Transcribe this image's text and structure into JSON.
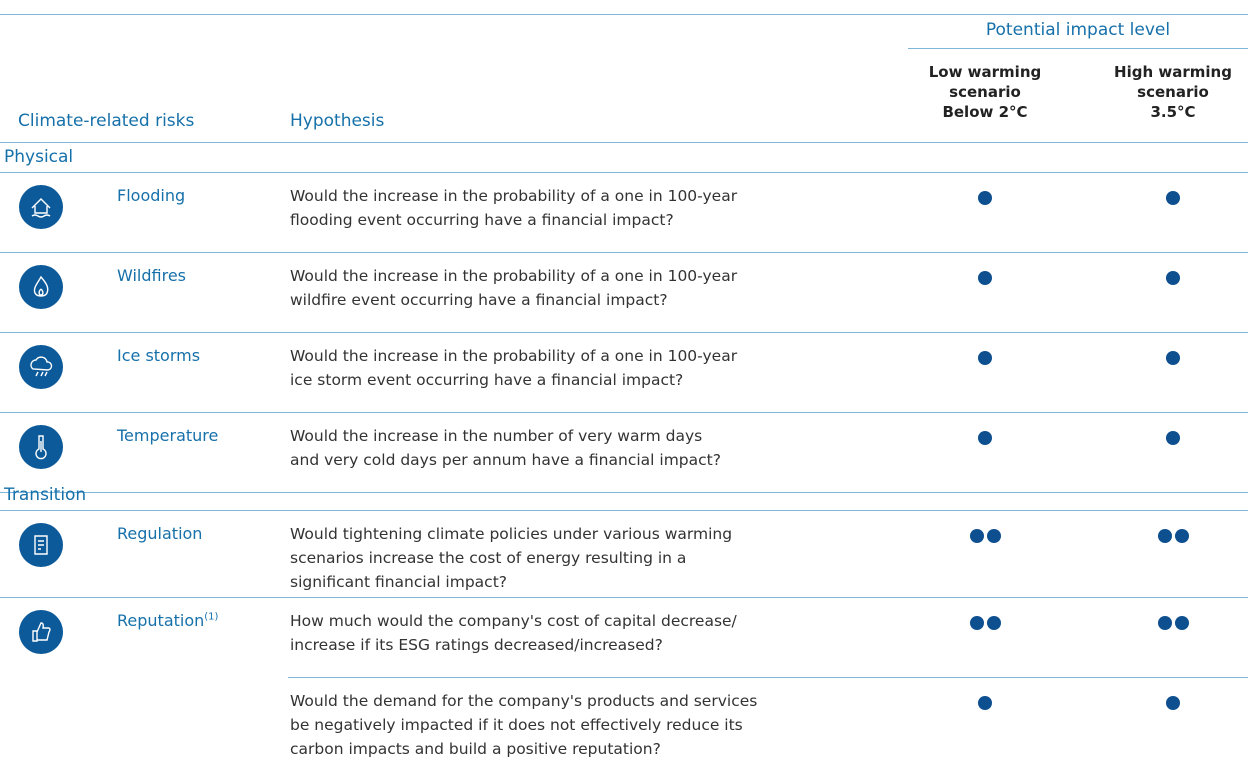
{
  "header": {
    "group_title": "Potential impact level",
    "columns": {
      "risk": "Climate-related risks",
      "hypothesis": "Hypothesis",
      "low": [
        "Low warming",
        "scenario",
        "Below 2°C"
      ],
      "high": [
        "High warming",
        "scenario",
        "3.5°C"
      ]
    }
  },
  "sections": [
    {
      "title": "Physical",
      "rows": [
        {
          "risk": "Flooding",
          "hypotheses": [
            {
              "lines": [
                "Would the increase in the probability of a one in 100-year",
                "flooding event occurring have a financial impact?"
              ],
              "low": 1,
              "high": 1
            }
          ]
        },
        {
          "risk": "Wildfires",
          "hypotheses": [
            {
              "lines": [
                "Would the increase in the probability of a one in 100-year",
                "wildfire event occurring have a financial impact?"
              ],
              "low": 1,
              "high": 1
            }
          ]
        },
        {
          "risk": "Ice storms",
          "hypotheses": [
            {
              "lines": [
                "Would the increase in the probability of a one in 100-year",
                "ice storm event occurring have a financial impact?"
              ],
              "low": 1,
              "high": 1
            }
          ]
        },
        {
          "risk": "Temperature",
          "hypotheses": [
            {
              "lines": [
                "Would the increase in the number of very warm days",
                "and very cold days per annum have a financial impact?"
              ],
              "low": 1,
              "high": 1
            }
          ]
        }
      ]
    },
    {
      "title": "Transition",
      "rows": [
        {
          "risk": "Regulation",
          "hypotheses": [
            {
              "lines": [
                "Would tightening climate policies under various warming",
                "scenarios increase the cost of energy resulting in a",
                "significant financial impact?"
              ],
              "low": 2,
              "high": 2
            }
          ]
        },
        {
          "risk": "Reputation",
          "note": "(1)",
          "hypotheses": [
            {
              "lines": [
                "How much would the company's cost of capital decrease/",
                "increase if its ESG ratings decreased/increased?"
              ],
              "low": 2,
              "high": 2
            },
            {
              "lines": [
                "Would the demand for the company's products and services",
                "be negatively impacted if it does not effectively reduce its",
                "carbon impacts and build a positive reputation?"
              ],
              "low": 1,
              "high": 1
            }
          ]
        }
      ]
    }
  ]
}
